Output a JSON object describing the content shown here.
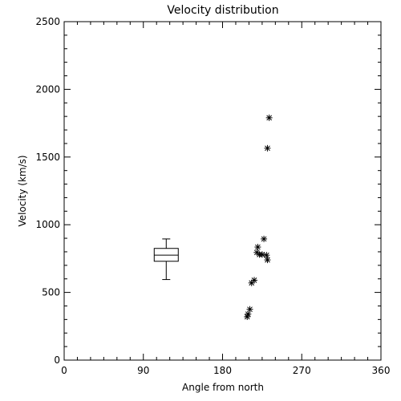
{
  "chart_data": {
    "type": "scatter",
    "title": "Velocity distribution",
    "xlabel": "Angle from north",
    "ylabel": "Velocity (km/s)",
    "xlim": [
      0,
      360
    ],
    "ylim": [
      0,
      2500
    ],
    "x_ticks": [
      0,
      90,
      180,
      270,
      360
    ],
    "y_ticks": [
      0,
      500,
      1000,
      1500,
      2000,
      2500
    ],
    "grid": false,
    "legend": "none",
    "marker": "asterisk",
    "points": [
      {
        "x": 233,
        "y": 1790
      },
      {
        "x": 231,
        "y": 1565
      },
      {
        "x": 227,
        "y": 895
      },
      {
        "x": 220,
        "y": 835
      },
      {
        "x": 219,
        "y": 795
      },
      {
        "x": 222,
        "y": 780
      },
      {
        "x": 225,
        "y": 780
      },
      {
        "x": 230,
        "y": 775
      },
      {
        "x": 231,
        "y": 740
      },
      {
        "x": 216,
        "y": 590
      },
      {
        "x": 213,
        "y": 570
      },
      {
        "x": 211,
        "y": 375
      },
      {
        "x": 209,
        "y": 340
      },
      {
        "x": 208,
        "y": 320
      }
    ],
    "boxplot": {
      "x": 116,
      "whisker_low": 595,
      "q1": 730,
      "median": 775,
      "q3": 825,
      "whisker_high": 895
    }
  }
}
